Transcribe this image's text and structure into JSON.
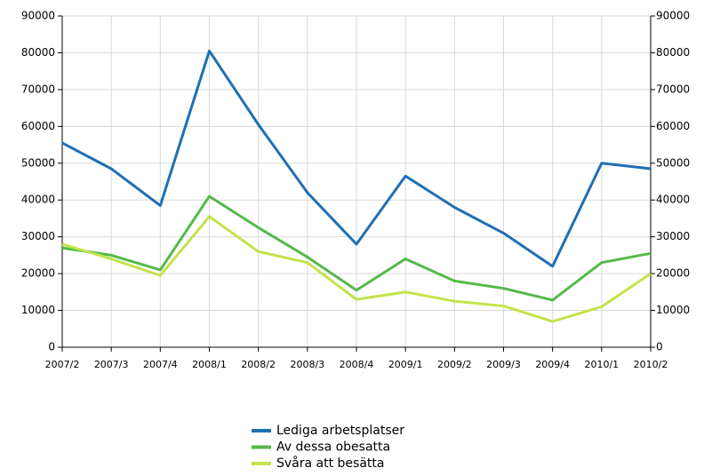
{
  "chart_data": {
    "type": "line",
    "categories": [
      "2007/2",
      "2007/3",
      "2007/4",
      "2008/1",
      "2008/2",
      "2008/3",
      "2008/4",
      "2009/1",
      "2009/2",
      "2009/3",
      "2009/4",
      "2010/1",
      "2010/2"
    ],
    "series": [
      {
        "name": "Lediga arbetsplatser",
        "color": "#1f6fb5",
        "values": [
          55500,
          48500,
          38500,
          80500,
          60500,
          42000,
          28000,
          46500,
          38000,
          31000,
          22000,
          50000,
          48500
        ]
      },
      {
        "name": "Av dessa obesatta",
        "color": "#55b94a",
        "values": [
          27000,
          25000,
          21000,
          41000,
          32500,
          24500,
          15500,
          24000,
          18000,
          16000,
          12800,
          23000,
          25500
        ]
      },
      {
        "name": "Svåra att besätta",
        "color": "#c3e34a",
        "values": [
          28000,
          24000,
          19500,
          35500,
          26000,
          23000,
          13000,
          15000,
          12500,
          11200,
          7000,
          11000,
          20000
        ]
      }
    ],
    "ylim": [
      0,
      90000
    ],
    "yticks": [
      0,
      10000,
      20000,
      30000,
      40000,
      50000,
      60000,
      70000,
      80000,
      90000
    ],
    "y2lim": [
      0,
      90000
    ],
    "y2ticks": [
      0,
      10000,
      20000,
      30000,
      40000,
      50000,
      60000,
      70000,
      80000,
      90000
    ],
    "grid": true,
    "legend": "bottom"
  }
}
